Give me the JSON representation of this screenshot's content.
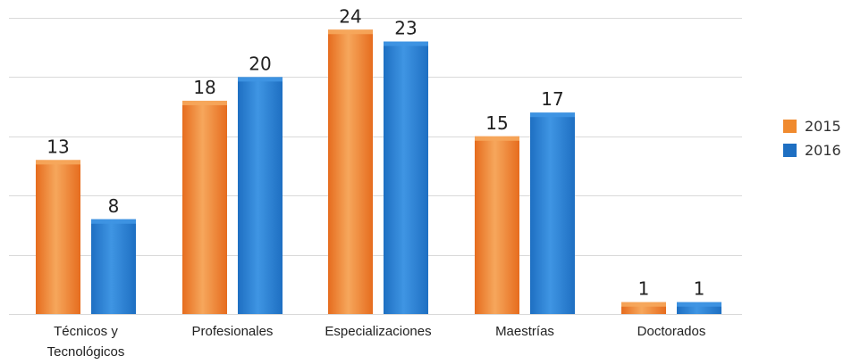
{
  "chart_data": {
    "type": "bar",
    "categories": [
      "Técnicos y Tecnológicos",
      "Profesionales",
      "Especializaciones",
      "Maestrías",
      "Doctorados"
    ],
    "category_lines": [
      [
        "Técnicos y",
        "Tecnológicos"
      ],
      [
        "Profesionales"
      ],
      [
        "Especializaciones"
      ],
      [
        "Maestrías"
      ],
      [
        "Doctorados"
      ]
    ],
    "series": [
      {
        "name": "2015",
        "values": [
          13,
          18,
          24,
          15,
          1
        ],
        "color": "#e66c1e",
        "color_light": "#f6a75c",
        "labels": [
          "13",
          "18",
          "24",
          "15",
          "1"
        ]
      },
      {
        "name": "2016",
        "values": [
          8,
          20,
          23,
          17,
          1
        ],
        "color": "#1e6fc2",
        "color_light": "#3f95e3",
        "labels": [
          "8",
          "20",
          "23",
          "17",
          "1"
        ]
      }
    ],
    "ylim": [
      0,
      25
    ],
    "grid": true,
    "legend_position": "right"
  }
}
